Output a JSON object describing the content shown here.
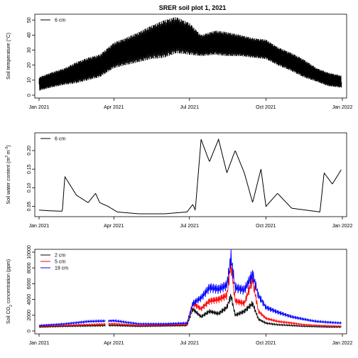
{
  "title": "SRER soil plot 1, 2021",
  "colors": {
    "black": "#000000",
    "red": "#ff0000",
    "blue": "#0000ff"
  },
  "x_tick_labels": [
    "Jan 2021",
    "Apr 2021",
    "Jul 2021",
    "Oct 2021",
    "Jan 2022"
  ],
  "chart_data": [
    {
      "type": "scatter",
      "title": "SRER soil plot 1, 2021",
      "ylabel": "Soil temperature (°C)",
      "ylabel_parts": {
        "pre": "Soil temperature (°C)",
        "sup1": "",
        "mid": "",
        "sup2": "",
        "post": ""
      },
      "x": [
        "2021-01-01",
        "2021-01-15",
        "2021-02-01",
        "2021-02-15",
        "2021-03-01",
        "2021-03-15",
        "2021-04-01",
        "2021-04-15",
        "2021-05-01",
        "2021-05-15",
        "2021-06-01",
        "2021-06-15",
        "2021-07-01",
        "2021-07-15",
        "2021-08-01",
        "2021-08-15",
        "2021-09-01",
        "2021-09-15",
        "2021-10-01",
        "2021-10-15",
        "2021-11-01",
        "2021-11-15",
        "2021-12-01",
        "2021-12-15",
        "2021-12-31"
      ],
      "series": [
        {
          "name": "6 cm",
          "color": "#000000",
          "min": [
            3,
            5,
            7,
            8,
            10,
            12,
            18,
            20,
            22,
            24,
            25,
            28,
            27,
            26,
            27,
            26,
            26,
            25,
            24,
            20,
            16,
            12,
            9,
            6,
            5
          ],
          "max": [
            12,
            15,
            18,
            22,
            25,
            27,
            35,
            38,
            42,
            46,
            50,
            52,
            48,
            40,
            43,
            42,
            40,
            38,
            37,
            32,
            28,
            24,
            18,
            15,
            13
          ]
        }
      ],
      "xlim": [
        "2021-01-01",
        "2022-01-01"
      ],
      "ylim": [
        0,
        52
      ],
      "yticks": [
        0,
        10,
        20,
        30,
        40,
        50
      ],
      "legend": "top-left",
      "grid": false
    },
    {
      "type": "scatter",
      "ylabel": "Soil water content (m3 m-3)",
      "ylabel_parts": {
        "pre": "Soil water content (m",
        "sup1": "3",
        "mid": " m",
        "sup2": "-3",
        "post": ")"
      },
      "x": [
        "2021-01-01",
        "2021-01-15",
        "2021-01-29",
        "2021-02-01",
        "2021-02-15",
        "2021-03-01",
        "2021-03-10",
        "2021-03-15",
        "2021-03-25",
        "2021-04-05",
        "2021-05-01",
        "2021-06-01",
        "2021-06-28",
        "2021-07-05",
        "2021-07-08",
        "2021-07-15",
        "2021-07-25",
        "2021-08-05",
        "2021-08-15",
        "2021-08-25",
        "2021-09-05",
        "2021-09-15",
        "2021-09-25",
        "2021-10-01",
        "2021-10-15",
        "2021-11-01",
        "2021-12-05",
        "2021-12-10",
        "2021-12-20",
        "2021-12-31"
      ],
      "series": [
        {
          "name": "6 cm",
          "color": "#000000",
          "values": [
            0.04,
            0.038,
            0.037,
            0.13,
            0.08,
            0.06,
            0.085,
            0.06,
            0.05,
            0.035,
            0.03,
            0.03,
            0.035,
            0.055,
            0.04,
            0.23,
            0.17,
            0.23,
            0.14,
            0.2,
            0.14,
            0.06,
            0.15,
            0.05,
            0.085,
            0.045,
            0.035,
            0.14,
            0.11,
            0.15
          ]
        }
      ],
      "xlim": [
        "2021-01-01",
        "2022-01-01"
      ],
      "ylim": [
        0.03,
        0.24
      ],
      "yticks": [
        0.05,
        0.1,
        0.15,
        0.2
      ],
      "legend": "top-left",
      "grid": false
    },
    {
      "type": "line",
      "ylabel": "Soil CO2 concentration (ppm)",
      "ylabel_parts": {
        "pre": "Soil CO",
        "sub": "2",
        "post": " concentration (ppm)"
      },
      "x": [
        "2021-01-01",
        "2021-02-01",
        "2021-03-01",
        "2021-04-01",
        "2021-05-01",
        "2021-06-01",
        "2021-06-28",
        "2021-07-05",
        "2021-07-15",
        "2021-07-25",
        "2021-08-05",
        "2021-08-15",
        "2021-08-20",
        "2021-08-25",
        "2021-09-05",
        "2021-09-15",
        "2021-09-22",
        "2021-10-01",
        "2021-10-15",
        "2021-11-01",
        "2021-11-15",
        "2021-12-01",
        "2021-12-15",
        "2021-12-31"
      ],
      "series": [
        {
          "name": "2 cm",
          "color": "#000000",
          "values": [
            500,
            600,
            650,
            700,
            600,
            650,
            700,
            2800,
            1800,
            2500,
            2200,
            3000,
            4500,
            2000,
            2500,
            3500,
            1500,
            1000,
            800,
            700,
            600,
            550,
            500,
            500
          ]
        },
        {
          "name": "5 cm",
          "color": "#ff0000",
          "values": [
            600,
            700,
            800,
            900,
            700,
            750,
            800,
            3500,
            2800,
            3800,
            4000,
            4500,
            8500,
            3800,
            3500,
            6500,
            2500,
            1600,
            1200,
            1000,
            800,
            700,
            650,
            600
          ]
        },
        {
          "name": "19 cm",
          "color": "#0000ff",
          "values": [
            700,
            900,
            1200,
            1300,
            900,
            900,
            1000,
            3500,
            4200,
            5500,
            5300,
            5800,
            9400,
            5500,
            5200,
            7200,
            4500,
            3000,
            2400,
            1800,
            1500,
            1200,
            1100,
            1000
          ]
        }
      ],
      "xlim": [
        "2021-01-01",
        "2022-01-01"
      ],
      "ylim": [
        0,
        10000
      ],
      "yticks": [
        0,
        2000,
        4000,
        6000,
        8000,
        10000
      ],
      "legend": "top-left",
      "grid": false
    }
  ]
}
